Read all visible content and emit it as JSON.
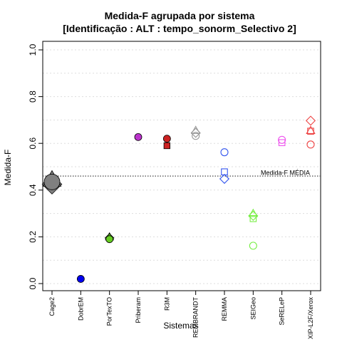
{
  "chart_data": {
    "type": "scatter",
    "title": "Medida-F agrupada por sistema",
    "subtitle": "[Identificação : ALT : tempo_sonorm_Selectivo 2]",
    "xlabel": "Sistemas",
    "ylabel": "Medida-F",
    "ylim": [
      0,
      1
    ],
    "yticks": [
      "0.0",
      "0.2",
      "0.4",
      "0.6",
      "0.8",
      "1.0"
    ],
    "grid": true,
    "categories": [
      "Cage2",
      "DobrEM",
      "PorTexTO",
      "Priberam",
      "R3M",
      "REMBRANDT",
      "REMMA",
      "SEIGeo",
      "SeRELeP",
      "XIP-L2F/Xerox"
    ],
    "reference_line": {
      "label": "Medida-F MÉDIA",
      "value": 0.46
    },
    "points": [
      {
        "category": "Cage2",
        "shape": "diamond",
        "value": 0.425,
        "color": "#808080",
        "filled": true,
        "large": true
      },
      {
        "category": "Cage2",
        "shape": "triangle",
        "value": 0.445,
        "color": "#808080",
        "filled": true,
        "large": true
      },
      {
        "category": "Cage2",
        "shape": "circle",
        "value": 0.435,
        "color": "#808080",
        "filled": true,
        "large": true
      },
      {
        "category": "DobrEM",
        "shape": "circle",
        "value": 0.02,
        "color": "#0000ee",
        "filled": true
      },
      {
        "category": "PorTexTO",
        "shape": "triangle",
        "value": 0.2,
        "color": "#66cc22",
        "filled": true
      },
      {
        "category": "PorTexTO",
        "shape": "diamond",
        "value": 0.195,
        "color": "#66cc22",
        "filled": true
      },
      {
        "category": "PorTexTO",
        "shape": "circle",
        "value": 0.19,
        "color": "#66cc22",
        "filled": true
      },
      {
        "category": "Priberam",
        "shape": "circle",
        "value": 0.627,
        "color": "#bb33cc",
        "filled": true
      },
      {
        "category": "R3M",
        "shape": "circle",
        "value": 0.62,
        "color": "#cc2222",
        "filled": true
      },
      {
        "category": "R3M",
        "shape": "square",
        "value": 0.59,
        "color": "#cc2222",
        "filled": true
      },
      {
        "category": "REMBRANDT",
        "shape": "triangle",
        "value": 0.655,
        "color": "#999999",
        "filled": false
      },
      {
        "category": "REMBRANDT",
        "shape": "diamond",
        "value": 0.645,
        "color": "#999999",
        "filled": false
      },
      {
        "category": "REMBRANDT",
        "shape": "circle",
        "value": 0.632,
        "color": "#999999",
        "filled": false
      },
      {
        "category": "REMMA",
        "shape": "circle",
        "value": 0.562,
        "color": "#3355ee",
        "filled": false
      },
      {
        "category": "REMMA",
        "shape": "square",
        "value": 0.478,
        "color": "#3355ee",
        "filled": false
      },
      {
        "category": "REMMA",
        "shape": "diamond",
        "value": 0.448,
        "color": "#3355ee",
        "filled": false
      },
      {
        "category": "SEIGeo",
        "shape": "triangle",
        "value": 0.3,
        "color": "#77ee44",
        "filled": false
      },
      {
        "category": "SEIGeo",
        "shape": "diamond",
        "value": 0.29,
        "color": "#77ee44",
        "filled": false
      },
      {
        "category": "SEIGeo",
        "shape": "square",
        "value": 0.278,
        "color": "#77ee44",
        "filled": false
      },
      {
        "category": "SEIGeo",
        "shape": "circle",
        "value": 0.162,
        "color": "#77ee44",
        "filled": false
      },
      {
        "category": "SeRELeP",
        "shape": "circle",
        "value": 0.615,
        "color": "#ee55ee",
        "filled": false
      },
      {
        "category": "SeRELeP",
        "shape": "square",
        "value": 0.603,
        "color": "#ee55ee",
        "filled": false
      },
      {
        "category": "XIP-L2F/Xerox",
        "shape": "diamond",
        "value": 0.697,
        "color": "#ee4444",
        "filled": false
      },
      {
        "category": "XIP-L2F/Xerox",
        "shape": "triangle",
        "value": 0.655,
        "color": "#ee4444",
        "filled": false
      },
      {
        "category": "XIP-L2F/Xerox",
        "shape": "square",
        "value": 0.652,
        "color": "#ee4444",
        "filled": false
      },
      {
        "category": "XIP-L2F/Xerox",
        "shape": "circle",
        "value": 0.595,
        "color": "#ee4444",
        "filled": false
      }
    ]
  }
}
